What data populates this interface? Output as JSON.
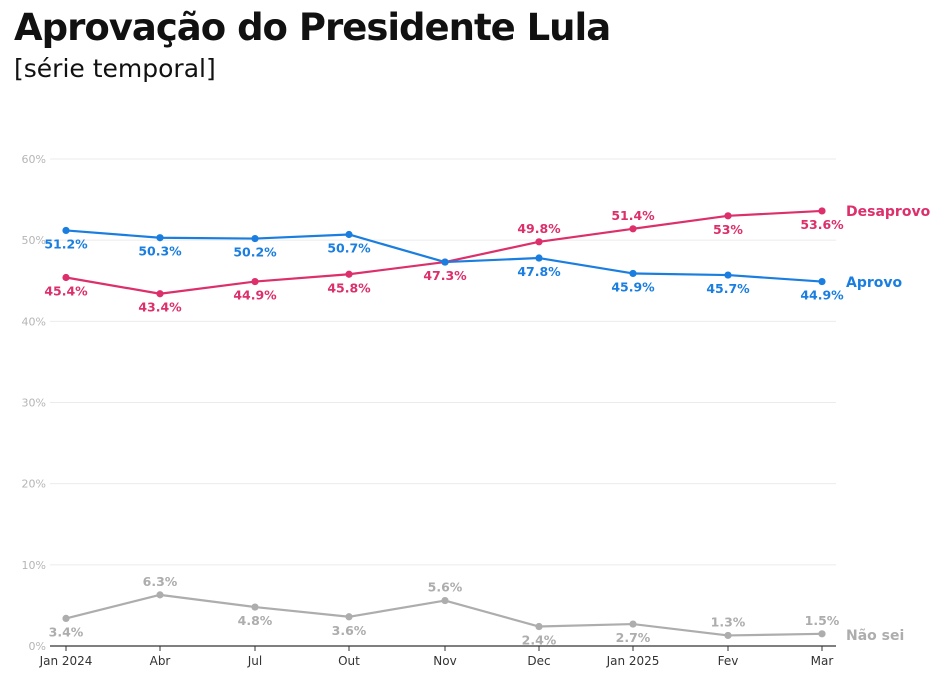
{
  "header": {
    "title": "Aprovação do Presidente Lula",
    "subtitle": "[série temporal]"
  },
  "chart_data": {
    "type": "line",
    "title": "Aprovação do Presidente Lula",
    "subtitle": "[série temporal]",
    "xlabel": "",
    "ylabel": "",
    "categories": [
      "Jan 2024",
      "Abr",
      "Jul",
      "Out",
      "Nov",
      "Dec",
      "Jan 2025",
      "Fev",
      "Mar"
    ],
    "ylim": [
      0,
      60
    ],
    "y_ticks": [
      0,
      10,
      20,
      30,
      40,
      50,
      60
    ],
    "y_tick_labels": [
      "0%",
      "10%",
      "20%",
      "30%",
      "40%",
      "50%",
      "60%"
    ],
    "grid": true,
    "legend": "direct labels at right end of lines",
    "series": [
      {
        "name": "Desaprovo",
        "color": "#dc2f6b",
        "values": [
          45.4,
          43.4,
          44.9,
          45.8,
          47.3,
          49.8,
          51.4,
          53,
          53.6
        ],
        "labels": [
          "45.4%",
          "43.4%",
          "44.9%",
          "45.8%",
          "47.3%",
          "49.8%",
          "51.4%",
          "53%",
          "53.6%"
        ]
      },
      {
        "name": "Aprovo",
        "color": "#1a7ee0",
        "values": [
          51.2,
          50.3,
          50.2,
          50.7,
          47.3,
          47.8,
          45.9,
          45.7,
          44.9
        ],
        "labels": [
          "51.2%",
          "50.3%",
          "50.2%",
          "50.7%",
          "",
          "47.8%",
          "45.9%",
          "45.7%",
          "44.9%"
        ]
      },
      {
        "name": "Não sei",
        "color": "#adadad",
        "values": [
          3.4,
          6.3,
          4.8,
          3.6,
          5.6,
          2.4,
          2.7,
          1.3,
          1.5
        ],
        "labels": [
          "3.4%",
          "6.3%",
          "4.8%",
          "3.6%",
          "5.6%",
          "2.4%",
          "2.7%",
          "1.3%",
          "1.5%"
        ]
      }
    ]
  }
}
